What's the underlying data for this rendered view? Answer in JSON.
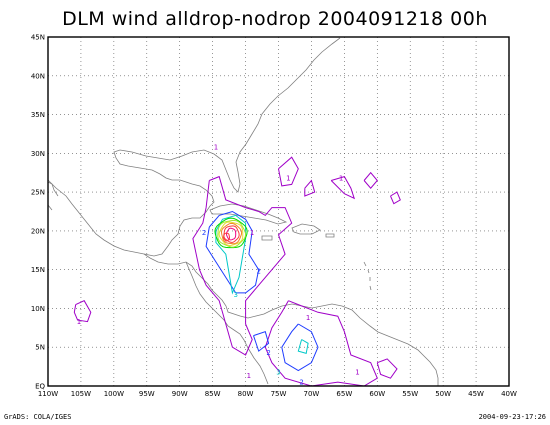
{
  "title": "DLM wind alldrop-nodrop 2004091218 00h",
  "footer_left": "GrADS: COLA/IGES",
  "footer_right": "2004-09-23-17:26",
  "map": {
    "lon_range": [
      -110,
      -40
    ],
    "lat_range": [
      0,
      45
    ],
    "lon_labels": [
      "110W",
      "105W",
      "100W",
      "95W",
      "90W",
      "85W",
      "80W",
      "75W",
      "70W",
      "65W",
      "60W",
      "55W",
      "50W",
      "45W",
      "40W"
    ],
    "lat_labels": [
      "EQ",
      "5N",
      "10N",
      "15N",
      "20N",
      "25N",
      "30N",
      "35N",
      "40N",
      "45N"
    ],
    "grid": true,
    "contour_colors": {
      "1": "#a000c8",
      "2": "#1e3cff",
      "3": "#00c8c8",
      "4": "#00dc00",
      "5": "#a0e632",
      "6": "#e6dc32",
      "7": "#f08228",
      "8": "#fa3c3c",
      "9": "#f00082"
    },
    "contour_labels": [
      {
        "text": "1",
        "lon": -84.5,
        "lat": 30.5
      },
      {
        "text": "1",
        "lon": -73.5,
        "lat": 26.5
      },
      {
        "text": "1",
        "lon": -65.5,
        "lat": 26.5
      },
      {
        "text": "2",
        "lon": -86.3,
        "lat": 19.5
      },
      {
        "text": "2",
        "lon": -78.0,
        "lat": 14.5
      },
      {
        "text": "3",
        "lon": -81.5,
        "lat": 11.5
      },
      {
        "text": "1",
        "lon": -79.0,
        "lat": 19.5
      },
      {
        "text": "1",
        "lon": -105.3,
        "lat": 8.0
      },
      {
        "text": "2",
        "lon": -76.5,
        "lat": 4.0
      },
      {
        "text": "3",
        "lon": -75.0,
        "lat": 1.5
      },
      {
        "text": "1",
        "lon": -79.5,
        "lat": 1.0
      },
      {
        "text": "2",
        "lon": -71.5,
        "lat": 0.2
      },
      {
        "text": "1",
        "lon": -63.0,
        "lat": 1.5
      },
      {
        "text": "1",
        "lon": -70.5,
        "lat": 8.5
      }
    ]
  }
}
